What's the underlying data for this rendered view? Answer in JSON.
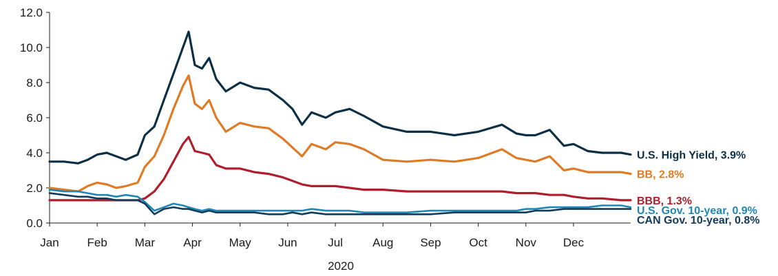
{
  "chart_data": {
    "type": "line",
    "title": "",
    "xlabel": "2020",
    "ylabel": "",
    "ylim": [
      0,
      12
    ],
    "yticks": [
      "0.0",
      "2.0",
      "4.0",
      "6.0",
      "8.0",
      "10.0",
      "12.0"
    ],
    "xlim": [
      0,
      12.2
    ],
    "categories": [
      "Jan",
      "Feb",
      "Mar",
      "Apr",
      "May",
      "Jun",
      "Jul",
      "Aug",
      "Sep",
      "Oct",
      "Nov",
      "Dec"
    ],
    "grid": false,
    "legend": "none",
    "series": [
      {
        "name": "U.S. High Yield",
        "label": "U.S. High Yield, 3.9%",
        "color": "#0d2f45",
        "x": [
          0,
          0.3,
          0.6,
          0.8,
          1.0,
          1.2,
          1.4,
          1.6,
          1.85,
          2.0,
          2.2,
          2.4,
          2.6,
          2.8,
          2.92,
          3.05,
          3.2,
          3.35,
          3.5,
          3.7,
          4.0,
          4.3,
          4.6,
          4.9,
          5.1,
          5.3,
          5.5,
          5.8,
          6.0,
          6.3,
          6.6,
          7.0,
          7.5,
          8.0,
          8.5,
          9.0,
          9.5,
          9.8,
          10.0,
          10.2,
          10.5,
          10.8,
          11.0,
          11.3,
          11.6,
          12.0,
          12.2
        ],
        "values": [
          3.5,
          3.5,
          3.4,
          3.6,
          3.9,
          4.0,
          3.8,
          3.6,
          3.9,
          5.0,
          5.5,
          7.0,
          8.5,
          10.0,
          10.9,
          9.0,
          8.8,
          9.4,
          8.2,
          7.5,
          8.0,
          7.7,
          7.6,
          7.0,
          6.5,
          5.6,
          6.3,
          6.0,
          6.3,
          6.5,
          6.1,
          5.5,
          5.2,
          5.2,
          5.0,
          5.2,
          5.6,
          5.1,
          5.0,
          5.0,
          5.3,
          4.4,
          4.5,
          4.1,
          4.0,
          4.0,
          3.9
        ]
      },
      {
        "name": "BB",
        "label": "BB, 2.8%",
        "color": "#e07b25",
        "x": [
          0,
          0.3,
          0.6,
          0.8,
          1.0,
          1.2,
          1.4,
          1.6,
          1.85,
          2.0,
          2.2,
          2.4,
          2.6,
          2.8,
          2.92,
          3.05,
          3.2,
          3.35,
          3.5,
          3.7,
          4.0,
          4.3,
          4.6,
          4.9,
          5.1,
          5.3,
          5.5,
          5.8,
          6.0,
          6.3,
          6.6,
          7.0,
          7.5,
          8.0,
          8.5,
          9.0,
          9.5,
          9.8,
          10.0,
          10.2,
          10.5,
          10.8,
          11.0,
          11.3,
          11.6,
          12.0,
          12.2
        ],
        "values": [
          2.0,
          1.9,
          1.8,
          2.1,
          2.3,
          2.2,
          2.0,
          2.1,
          2.3,
          3.2,
          3.8,
          5.0,
          6.5,
          7.8,
          8.4,
          6.8,
          6.5,
          7.0,
          6.0,
          5.2,
          5.7,
          5.5,
          5.4,
          4.8,
          4.3,
          3.8,
          4.5,
          4.2,
          4.6,
          4.5,
          4.2,
          3.6,
          3.5,
          3.6,
          3.5,
          3.7,
          4.2,
          3.7,
          3.6,
          3.5,
          3.8,
          3.0,
          3.1,
          2.9,
          2.9,
          2.9,
          2.8
        ]
      },
      {
        "name": "BBB",
        "label": "BBB, 1.3%",
        "color": "#b01e2d",
        "x": [
          0,
          0.3,
          0.6,
          0.8,
          1.0,
          1.2,
          1.4,
          1.6,
          1.85,
          2.0,
          2.2,
          2.4,
          2.6,
          2.8,
          2.92,
          3.05,
          3.2,
          3.35,
          3.5,
          3.7,
          4.0,
          4.3,
          4.6,
          4.9,
          5.1,
          5.3,
          5.5,
          5.8,
          6.0,
          6.3,
          6.6,
          7.0,
          7.5,
          8.0,
          8.5,
          9.0,
          9.5,
          9.8,
          10.0,
          10.2,
          10.5,
          10.8,
          11.0,
          11.3,
          11.6,
          12.0,
          12.2
        ],
        "values": [
          1.3,
          1.3,
          1.3,
          1.3,
          1.3,
          1.3,
          1.3,
          1.3,
          1.3,
          1.4,
          1.8,
          2.5,
          3.5,
          4.5,
          4.9,
          4.1,
          4.0,
          3.9,
          3.3,
          3.1,
          3.1,
          2.9,
          2.8,
          2.6,
          2.4,
          2.2,
          2.1,
          2.1,
          2.1,
          2.0,
          1.9,
          1.9,
          1.8,
          1.8,
          1.8,
          1.8,
          1.8,
          1.7,
          1.7,
          1.7,
          1.6,
          1.6,
          1.5,
          1.4,
          1.4,
          1.3,
          1.3
        ]
      },
      {
        "name": "U.S. Gov. 10-year",
        "label": "U.S. Gov. 10-year, 0.9%",
        "color": "#1f86b5",
        "x": [
          0,
          0.3,
          0.6,
          0.8,
          1.0,
          1.2,
          1.4,
          1.6,
          1.85,
          2.0,
          2.2,
          2.4,
          2.6,
          2.8,
          2.92,
          3.05,
          3.2,
          3.35,
          3.5,
          3.7,
          4.0,
          4.3,
          4.6,
          4.9,
          5.1,
          5.3,
          5.5,
          5.8,
          6.0,
          6.3,
          6.6,
          7.0,
          7.5,
          8.0,
          8.5,
          9.0,
          9.5,
          9.8,
          10.0,
          10.2,
          10.5,
          10.8,
          11.0,
          11.3,
          11.6,
          12.0,
          12.2
        ],
        "values": [
          1.9,
          1.8,
          1.8,
          1.7,
          1.6,
          1.6,
          1.5,
          1.6,
          1.5,
          1.2,
          0.7,
          0.9,
          1.1,
          1.0,
          0.9,
          0.8,
          0.7,
          0.8,
          0.7,
          0.7,
          0.7,
          0.7,
          0.7,
          0.7,
          0.7,
          0.7,
          0.8,
          0.7,
          0.7,
          0.7,
          0.6,
          0.6,
          0.6,
          0.7,
          0.7,
          0.7,
          0.7,
          0.7,
          0.8,
          0.8,
          0.9,
          0.9,
          0.9,
          0.9,
          1.0,
          1.0,
          0.9
        ]
      },
      {
        "name": "CAN Gov. 10-year",
        "label": "CAN Gov. 10-year, 0.8%",
        "color": "#123a5a",
        "x": [
          0,
          0.3,
          0.6,
          0.8,
          1.0,
          1.2,
          1.4,
          1.6,
          1.85,
          2.0,
          2.2,
          2.4,
          2.6,
          2.8,
          2.92,
          3.05,
          3.2,
          3.35,
          3.5,
          3.7,
          4.0,
          4.3,
          4.6,
          4.9,
          5.1,
          5.3,
          5.5,
          5.8,
          6.0,
          6.3,
          6.6,
          7.0,
          7.5,
          8.0,
          8.5,
          9.0,
          9.5,
          9.8,
          10.0,
          10.2,
          10.5,
          10.8,
          11.0,
          11.3,
          11.6,
          12.0,
          12.2
        ],
        "values": [
          1.7,
          1.6,
          1.5,
          1.5,
          1.4,
          1.4,
          1.3,
          1.3,
          1.3,
          1.1,
          0.5,
          0.8,
          0.9,
          0.8,
          0.8,
          0.7,
          0.6,
          0.7,
          0.6,
          0.6,
          0.6,
          0.6,
          0.5,
          0.5,
          0.6,
          0.5,
          0.6,
          0.5,
          0.5,
          0.5,
          0.5,
          0.5,
          0.5,
          0.5,
          0.6,
          0.6,
          0.6,
          0.6,
          0.6,
          0.7,
          0.7,
          0.8,
          0.8,
          0.8,
          0.8,
          0.8,
          0.8
        ]
      }
    ]
  }
}
